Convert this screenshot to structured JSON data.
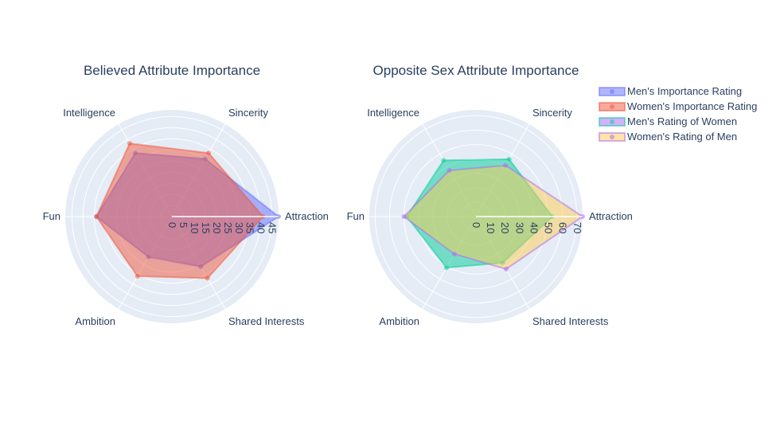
{
  "chart_data": [
    {
      "type": "radar",
      "title": "Believed Attribute Importance",
      "categories": [
        "Attraction",
        "Sincerity",
        "Intelligence",
        "Fun",
        "Ambition",
        "Shared Interests"
      ],
      "radial_ticks": [
        "0",
        "5",
        "10",
        "15",
        "20",
        "25",
        "30",
        "35",
        "40",
        "45"
      ],
      "radial_range": [
        0,
        48
      ],
      "series": [
        {
          "name": "Men's Importance Rating",
          "color": "#636efa",
          "values": [
            48,
            30,
            33,
            34,
            21,
            26
          ]
        },
        {
          "name": "Women's Importance Rating",
          "color": "#ef553b",
          "values": [
            41,
            33,
            38,
            34,
            31,
            32
          ]
        }
      ]
    },
    {
      "type": "radar",
      "title": "Opposite Sex Attribute Importance",
      "categories": [
        "Attraction",
        "Sincerity",
        "Intelligence",
        "Fun",
        "Ambition",
        "Shared Interests"
      ],
      "radial_ticks": [
        "0",
        "10",
        "20",
        "30",
        "40",
        "50",
        "60",
        "70"
      ],
      "radial_range": [
        0,
        74
      ],
      "series": [
        {
          "name": "Men's Rating of Women",
          "color": "#00cc96",
          "values": [
            53,
            46,
            45,
            48,
            41,
            37
          ]
        },
        {
          "name": "Women's Rating of Men",
          "color": "#ab63fa",
          "fill": "#fecb52",
          "values": [
            74,
            41,
            37,
            50,
            30,
            42
          ]
        }
      ]
    }
  ],
  "legend": {
    "position": "top-right",
    "items": [
      {
        "label": "Men's Importance Rating",
        "line": "#636efa",
        "fill": "#636efa"
      },
      {
        "label": "Women's Importance Rating",
        "line": "#ef553b",
        "fill": "#ef553b"
      },
      {
        "label": "Men's Rating of Women",
        "line": "#00cc96",
        "fill": "#ab63fa"
      },
      {
        "label": "Women's Rating of Men",
        "line": "#ab63fa",
        "fill": "#fecb52"
      }
    ]
  },
  "colors": {
    "polar_bg": "#e5ecf6",
    "grid": "#ffffff",
    "text": "#2a3f5f"
  }
}
